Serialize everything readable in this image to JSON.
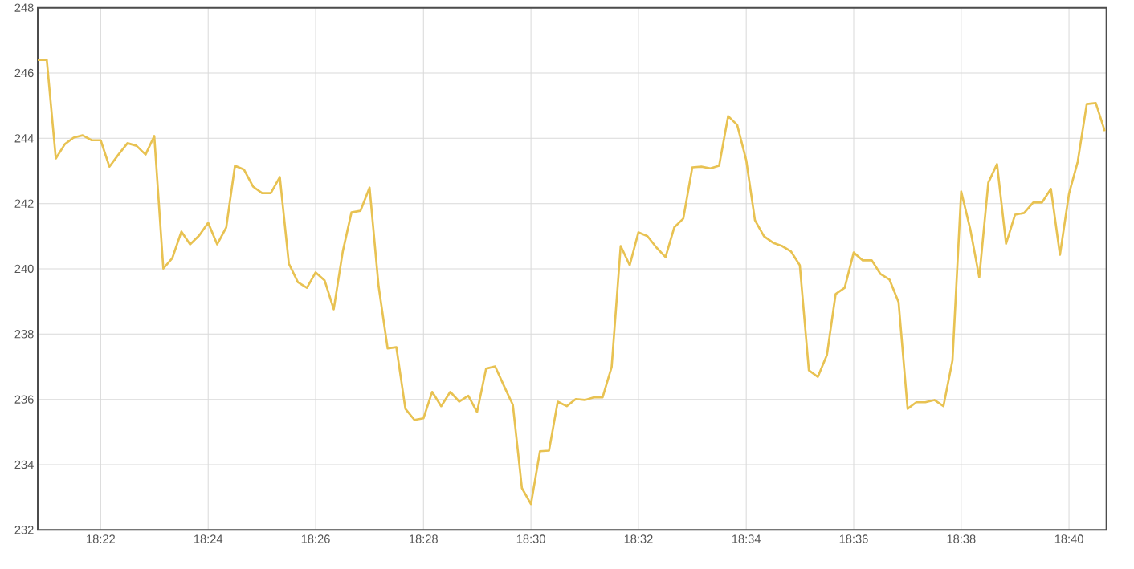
{
  "chart_data": {
    "type": "line",
    "color": "#e8c252",
    "marker": "none",
    "line_style": "solid",
    "grid": true,
    "x": [
      18.3472,
      18.35,
      18.3528,
      18.3556,
      18.3583,
      18.3611,
      18.3639,
      18.3667,
      18.3694,
      18.3722,
      18.375,
      18.3778,
      18.3806,
      18.3833,
      18.3861,
      18.3889,
      18.3917,
      18.3944,
      18.3972,
      18.4,
      18.4028,
      18.4056,
      18.4083,
      18.4111,
      18.4139,
      18.4167,
      18.4194,
      18.4222,
      18.425,
      18.4278,
      18.4306,
      18.4333,
      18.4361,
      18.4389,
      18.4417,
      18.4444,
      18.4472,
      18.45,
      18.4528,
      18.4556,
      18.4583,
      18.4611,
      18.4639,
      18.4667,
      18.4694,
      18.4722,
      18.475,
      18.4778,
      18.4806,
      18.4833,
      18.4861,
      18.4889,
      18.4917,
      18.4944,
      18.4972,
      18.5,
      18.5028,
      18.5056,
      18.5083,
      18.5111,
      18.5139,
      18.5167,
      18.5194,
      18.5222,
      18.525,
      18.5278,
      18.5306,
      18.5333,
      18.5361,
      18.5389,
      18.5417,
      18.5444,
      18.5472,
      18.55,
      18.5528,
      18.5556,
      18.5583,
      18.5611,
      18.5639,
      18.5667,
      18.5694,
      18.5722,
      18.575,
      18.5778,
      18.5806,
      18.5833,
      18.5861,
      18.5889,
      18.5917,
      18.5944,
      18.5972,
      18.6,
      18.6028,
      18.6056,
      18.6083,
      18.6111,
      18.6139,
      18.6167,
      18.6194,
      18.6222,
      18.625,
      18.6278,
      18.6306,
      18.6333,
      18.6361,
      18.6389,
      18.6417,
      18.6444,
      18.6472,
      18.65,
      18.6528,
      18.6556,
      18.6583,
      18.6611,
      18.6639,
      18.6667,
      18.6694,
      18.6722,
      18.675,
      18.6778
    ],
    "values": [
      246.4,
      246.4,
      243.38,
      243.82,
      244.02,
      244.09,
      243.94,
      243.94,
      243.13,
      243.5,
      243.85,
      243.77,
      243.5,
      244.07,
      240.01,
      240.33,
      241.14,
      240.75,
      241.02,
      241.41,
      240.75,
      241.27,
      243.16,
      243.04,
      242.52,
      242.32,
      242.32,
      242.81,
      240.16,
      239.59,
      239.42,
      239.89,
      239.64,
      238.76,
      240.53,
      241.73,
      241.78,
      242.49,
      239.47,
      237.56,
      237.6,
      235.71,
      235.37,
      235.42,
      236.23,
      235.79,
      236.23,
      235.93,
      236.11,
      235.61,
      236.94,
      237.01,
      236.4,
      235.83,
      233.28,
      232.79,
      234.41,
      234.43,
      235.93,
      235.79,
      236.01,
      235.98,
      236.06,
      236.06,
      236.99,
      240.7,
      240.11,
      241.12,
      241.0,
      240.65,
      240.36,
      241.27,
      241.54,
      243.11,
      243.13,
      243.08,
      243.16,
      244.68,
      244.41,
      243.33,
      241.49,
      241.0,
      240.8,
      240.7,
      240.53,
      240.11,
      236.89,
      236.69,
      237.36,
      239.23,
      239.42,
      240.5,
      240.26,
      240.26,
      239.84,
      239.67,
      238.98,
      235.71,
      235.91,
      235.91,
      235.98,
      235.79,
      237.19,
      242.37,
      241.22,
      239.74,
      242.64,
      243.21,
      240.77,
      241.66,
      241.71,
      242.03,
      242.03,
      242.45,
      240.43,
      242.3,
      243.28,
      245.05,
      245.08,
      244.22
    ],
    "xlim": [
      18.3472,
      18.6783
    ],
    "xticks": [
      {
        "value": 18.3667,
        "label": "18:22"
      },
      {
        "value": 18.4,
        "label": "18:24"
      },
      {
        "value": 18.4333,
        "label": "18:26"
      },
      {
        "value": 18.4667,
        "label": "18:28"
      },
      {
        "value": 18.5,
        "label": "18:30"
      },
      {
        "value": 18.5333,
        "label": "18:32"
      },
      {
        "value": 18.5667,
        "label": "18:34"
      },
      {
        "value": 18.6,
        "label": "18:36"
      },
      {
        "value": 18.6333,
        "label": "18:38"
      },
      {
        "value": 18.6667,
        "label": "18:40"
      }
    ],
    "ylim": [
      232,
      248
    ],
    "yticks": [
      232,
      234,
      236,
      238,
      240,
      242,
      244,
      246,
      248
    ]
  }
}
